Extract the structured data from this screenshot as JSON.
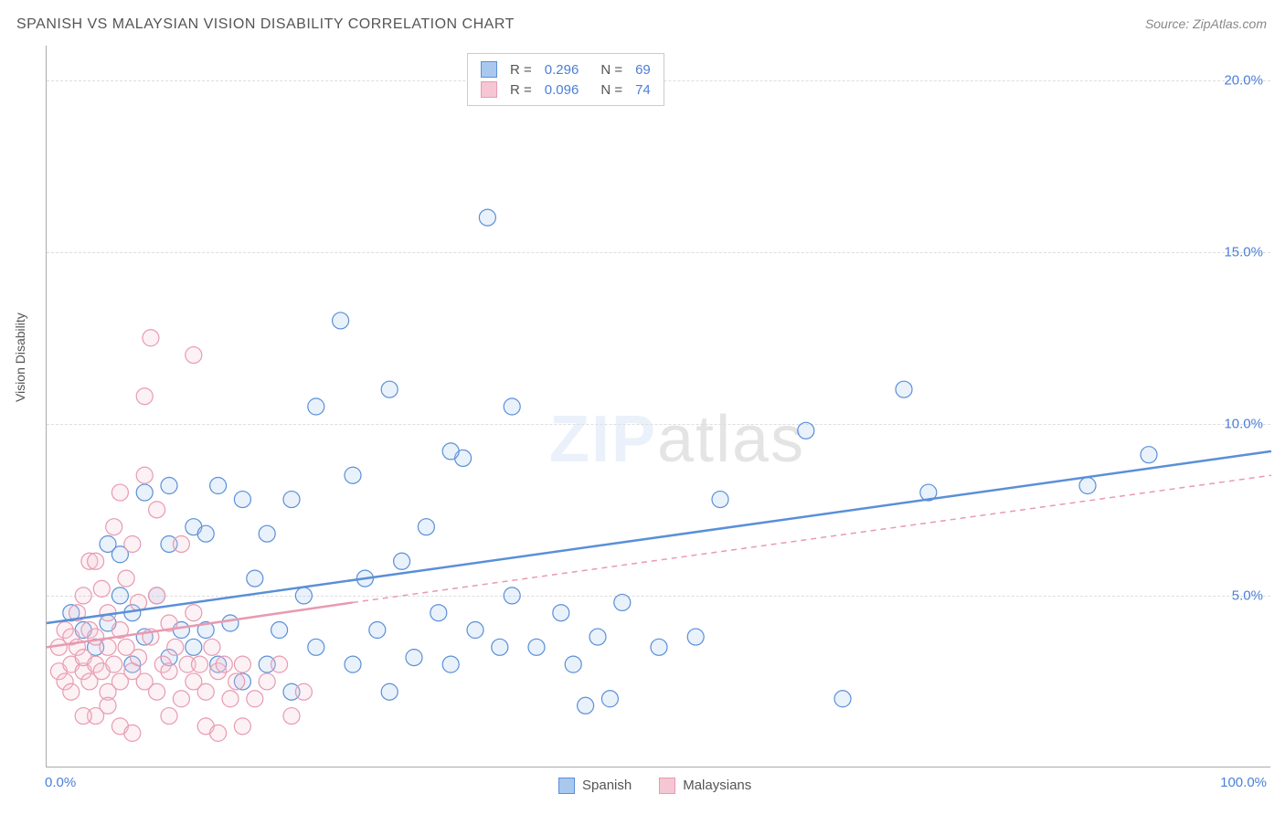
{
  "title": "SPANISH VS MALAYSIAN VISION DISABILITY CORRELATION CHART",
  "source": "Source: ZipAtlas.com",
  "yaxis_label": "Vision Disability",
  "watermark_zip": "ZIP",
  "watermark_atlas": "atlas",
  "chart": {
    "type": "scatter",
    "xlim": [
      0,
      100
    ],
    "ylim": [
      0,
      21
    ],
    "grid_color": "#dddddd",
    "background_color": "#ffffff",
    "axis_color": "#aaaaaa",
    "tick_color": "#4a7fd8",
    "tick_fontsize": 15,
    "title_fontsize": 16,
    "title_color": "#555555",
    "marker_radius": 9,
    "marker_stroke_width": 1.2,
    "marker_fill_opacity": 0.25,
    "line_width_solid": 2.5,
    "line_width_dash": 1.5,
    "dash_pattern": "6,5",
    "y_gridlines": [
      5,
      10,
      15,
      20
    ],
    "y_tick_labels": [
      "5.0%",
      "10.0%",
      "15.0%",
      "20.0%"
    ],
    "x_ticks": [
      {
        "x": 0,
        "label": "0.0%"
      },
      {
        "x": 100,
        "label": "100.0%"
      }
    ]
  },
  "series": [
    {
      "name": "Spanish",
      "color_stroke": "#5a8fd8",
      "color_fill": "#a8c8ee",
      "R": "0.296",
      "N": "69",
      "trend_solid": {
        "x1": 0,
        "y1": 4.2,
        "x2": 100,
        "y2": 9.2
      },
      "points": [
        [
          2,
          4.5
        ],
        [
          3,
          4.0
        ],
        [
          4,
          3.5
        ],
        [
          5,
          4.2
        ],
        [
          5,
          6.5
        ],
        [
          6,
          5.0
        ],
        [
          6,
          6.2
        ],
        [
          7,
          3.0
        ],
        [
          7,
          4.5
        ],
        [
          8,
          3.8
        ],
        [
          8,
          8.0
        ],
        [
          9,
          5.0
        ],
        [
          10,
          3.2
        ],
        [
          10,
          6.5
        ],
        [
          10,
          8.2
        ],
        [
          11,
          4.0
        ],
        [
          12,
          3.5
        ],
        [
          12,
          7.0
        ],
        [
          13,
          6.8
        ],
        [
          14,
          3.0
        ],
        [
          14,
          8.2
        ],
        [
          15,
          4.2
        ],
        [
          16,
          2.5
        ],
        [
          16,
          7.8
        ],
        [
          17,
          5.5
        ],
        [
          18,
          3.0
        ],
        [
          18,
          6.8
        ],
        [
          19,
          4.0
        ],
        [
          20,
          2.2
        ],
        [
          20,
          7.8
        ],
        [
          21,
          5.0
        ],
        [
          22,
          3.5
        ],
        [
          22,
          10.5
        ],
        [
          24,
          13.0
        ],
        [
          25,
          3.0
        ],
        [
          25,
          8.5
        ],
        [
          26,
          5.5
        ],
        [
          27,
          4.0
        ],
        [
          28,
          11.0
        ],
        [
          29,
          6.0
        ],
        [
          30,
          3.2
        ],
        [
          31,
          7.0
        ],
        [
          32,
          4.5
        ],
        [
          33,
          3.0
        ],
        [
          34,
          9.0
        ],
        [
          33,
          9.2
        ],
        [
          35,
          4.0
        ],
        [
          36,
          16.0
        ],
        [
          37,
          3.5
        ],
        [
          38,
          5.0
        ],
        [
          38,
          10.5
        ],
        [
          40,
          3.5
        ],
        [
          42,
          4.5
        ],
        [
          43,
          3.0
        ],
        [
          44,
          1.8
        ],
        [
          45,
          3.8
        ],
        [
          47,
          4.8
        ],
        [
          50,
          3.5
        ],
        [
          53,
          3.8
        ],
        [
          55,
          7.8
        ],
        [
          62,
          9.8
        ],
        [
          65,
          2.0
        ],
        [
          70,
          11.0
        ],
        [
          72,
          8.0
        ],
        [
          85,
          8.2
        ],
        [
          90,
          9.1
        ],
        [
          46,
          2.0
        ],
        [
          28,
          2.2
        ],
        [
          13,
          4.0
        ]
      ]
    },
    {
      "name": "Malaysians",
      "color_stroke": "#e89ab0",
      "color_fill": "#f5c6d3",
      "R": "0.096",
      "N": "74",
      "trend_solid": {
        "x1": 0,
        "y1": 3.5,
        "x2": 25,
        "y2": 4.8
      },
      "trend_dash": {
        "x1": 25,
        "y1": 4.8,
        "x2": 100,
        "y2": 8.5
      },
      "points": [
        [
          1,
          2.8
        ],
        [
          1,
          3.5
        ],
        [
          1.5,
          2.5
        ],
        [
          1.5,
          4.0
        ],
        [
          2,
          3.0
        ],
        [
          2,
          3.8
        ],
        [
          2,
          2.2
        ],
        [
          2.5,
          3.5
        ],
        [
          2.5,
          4.5
        ],
        [
          3,
          2.8
        ],
        [
          3,
          3.2
        ],
        [
          3,
          5.0
        ],
        [
          3.5,
          2.5
        ],
        [
          3.5,
          4.0
        ],
        [
          3.5,
          6.0
        ],
        [
          4,
          3.0
        ],
        [
          4,
          3.8
        ],
        [
          4,
          1.5
        ],
        [
          4.5,
          2.8
        ],
        [
          4.5,
          5.2
        ],
        [
          5,
          3.5
        ],
        [
          5,
          2.2
        ],
        [
          5,
          4.5
        ],
        [
          5.5,
          3.0
        ],
        [
          5.5,
          7.0
        ],
        [
          6,
          2.5
        ],
        [
          6,
          4.0
        ],
        [
          6,
          1.2
        ],
        [
          6.5,
          3.5
        ],
        [
          6.5,
          5.5
        ],
        [
          7,
          2.8
        ],
        [
          7,
          6.5
        ],
        [
          7,
          1.0
        ],
        [
          7.5,
          3.2
        ],
        [
          7.5,
          4.8
        ],
        [
          8,
          2.5
        ],
        [
          8,
          10.8
        ],
        [
          8.5,
          3.8
        ],
        [
          8.5,
          12.5
        ],
        [
          9,
          2.2
        ],
        [
          9,
          5.0
        ],
        [
          9,
          7.5
        ],
        [
          9.5,
          3.0
        ],
        [
          10,
          1.5
        ],
        [
          10,
          4.2
        ],
        [
          10,
          2.8
        ],
        [
          10.5,
          3.5
        ],
        [
          11,
          2.0
        ],
        [
          11,
          6.5
        ],
        [
          11.5,
          3.0
        ],
        [
          12,
          2.5
        ],
        [
          12,
          4.5
        ],
        [
          12,
          12.0
        ],
        [
          12.5,
          3.0
        ],
        [
          13,
          2.2
        ],
        [
          13,
          1.2
        ],
        [
          13.5,
          3.5
        ],
        [
          14,
          2.8
        ],
        [
          14,
          1.0
        ],
        [
          14.5,
          3.0
        ],
        [
          15,
          2.0
        ],
        [
          15.5,
          2.5
        ],
        [
          16,
          3.0
        ],
        [
          16,
          1.2
        ],
        [
          17,
          2.0
        ],
        [
          18,
          2.5
        ],
        [
          19,
          3.0
        ],
        [
          20,
          1.5
        ],
        [
          21,
          2.2
        ],
        [
          8,
          8.5
        ],
        [
          6,
          8.0
        ],
        [
          4,
          6.0
        ],
        [
          5,
          1.8
        ],
        [
          3,
          1.5
        ]
      ]
    }
  ],
  "legend_top_labels": {
    "R": "R =",
    "N": "N ="
  },
  "legend_bottom": [
    {
      "label": "Spanish",
      "stroke": "#5a8fd8",
      "fill": "#a8c8ee"
    },
    {
      "label": "Malaysians",
      "stroke": "#e89ab0",
      "fill": "#f5c6d3"
    }
  ]
}
